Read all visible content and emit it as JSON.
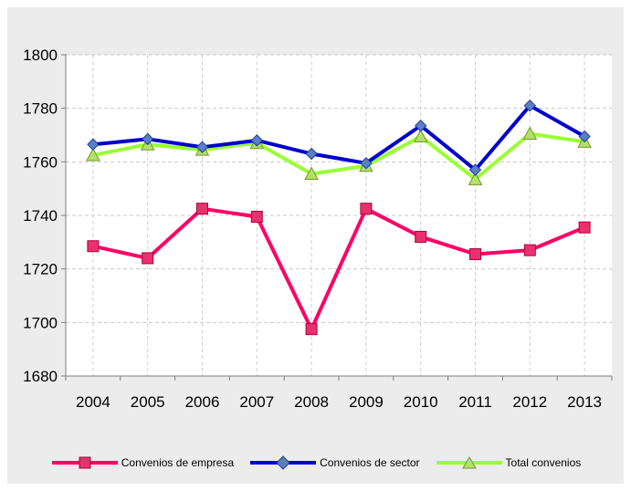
{
  "chart_data": {
    "type": "line",
    "categories": [
      "2004",
      "2005",
      "2006",
      "2007",
      "2008",
      "2009",
      "2010",
      "2011",
      "2012",
      "2013"
    ],
    "ylim": [
      1680,
      1800
    ],
    "yticks": [
      1680,
      1700,
      1720,
      1740,
      1760,
      1780,
      1800
    ],
    "grid": true,
    "legend_position": "bottom",
    "series": [
      {
        "name": "Convenios de empresa",
        "color": "#ff0066",
        "marker": "square",
        "values": [
          1728.5,
          1724,
          1742.5,
          1739.5,
          1697.5,
          1742.5,
          1732,
          1725.5,
          1727,
          1735.5
        ]
      },
      {
        "name": "Convenios de sector",
        "color": "#0000cc",
        "marker": "diamond",
        "values": [
          1766.5,
          1768.5,
          1765.5,
          1768,
          1763,
          1759.5,
          1773.5,
          1757,
          1781,
          1769.5
        ]
      },
      {
        "name": "Total convenios",
        "color": "#99ff33",
        "marker": "triangle",
        "values": [
          1762.5,
          1766.5,
          1764.5,
          1767,
          1755.5,
          1758.5,
          1769.5,
          1753.5,
          1770.5,
          1767.5
        ]
      }
    ]
  }
}
